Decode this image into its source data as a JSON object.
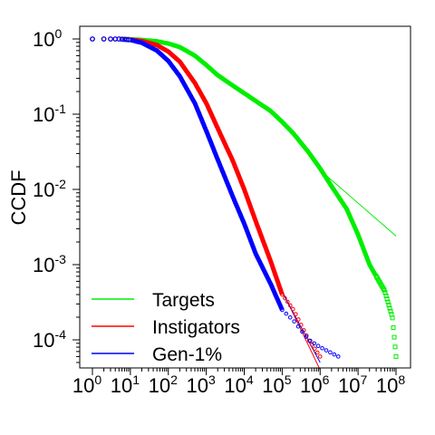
{
  "chart_data": {
    "type": "line",
    "title": "",
    "xlabel": "",
    "ylabel": "CCDF",
    "xscale": "log",
    "yscale": "log",
    "xlim": [
      1,
      100000000
    ],
    "ylim": [
      4e-05,
      1
    ],
    "grid": false,
    "legend_placement": "bottom-left",
    "x_ticks": [
      {
        "base": "10",
        "exp": "0",
        "value": 1
      },
      {
        "base": "10",
        "exp": "1",
        "value": 10
      },
      {
        "base": "10",
        "exp": "2",
        "value": 100
      },
      {
        "base": "10",
        "exp": "3",
        "value": 1000
      },
      {
        "base": "10",
        "exp": "4",
        "value": 10000
      },
      {
        "base": "10",
        "exp": "5",
        "value": 100000
      },
      {
        "base": "10",
        "exp": "6",
        "value": 1000000
      },
      {
        "base": "10",
        "exp": "7",
        "value": 10000000
      },
      {
        "base": "10",
        "exp": "8",
        "value": 100000000
      }
    ],
    "y_ticks": [
      {
        "base": "10",
        "exp": "0",
        "value": 1
      },
      {
        "base": "10",
        "exp": "-1",
        "value": 0.1
      },
      {
        "base": "10",
        "exp": "-2",
        "value": 0.01
      },
      {
        "base": "10",
        "exp": "-3",
        "value": 0.001
      },
      {
        "base": "10",
        "exp": "-4",
        "value": 0.0001
      }
    ],
    "series": [
      {
        "name": "Targets",
        "color": "#00ee00",
        "x": [
          1,
          2,
          3,
          5,
          10,
          20,
          50,
          100,
          200,
          500,
          1000,
          2000,
          5000,
          10000,
          20000,
          50000,
          100000,
          200000,
          500000,
          1000000,
          2000000,
          5000000,
          10000000,
          20000000,
          50000000,
          80000000,
          100000000
        ],
        "y": [
          1,
          1,
          1,
          1,
          0.99,
          0.97,
          0.93,
          0.87,
          0.78,
          0.6,
          0.45,
          0.33,
          0.24,
          0.19,
          0.15,
          0.11,
          0.079,
          0.055,
          0.031,
          0.019,
          0.011,
          0.0055,
          0.0025,
          0.001,
          0.00045,
          0.0002,
          6e-05
        ]
      },
      {
        "name": "Instigators",
        "color": "#ff0000",
        "x": [
          1,
          2,
          3,
          5,
          10,
          20,
          50,
          100,
          200,
          500,
          1000,
          2000,
          5000,
          10000,
          20000,
          50000,
          100000,
          200000,
          500000,
          1000000
        ],
        "y": [
          1,
          1,
          1,
          1,
          0.98,
          0.94,
          0.83,
          0.68,
          0.5,
          0.26,
          0.14,
          0.065,
          0.024,
          0.01,
          0.0038,
          0.0011,
          0.0004,
          0.00025,
          0.0001,
          6e-05
        ]
      },
      {
        "name": "Gen-1%",
        "color": "#0000ff",
        "x": [
          1,
          2,
          3,
          5,
          10,
          20,
          50,
          100,
          200,
          500,
          1000,
          2000,
          5000,
          10000,
          20000,
          50000,
          100000,
          200000,
          500000,
          1000000,
          3000000
        ],
        "y": [
          1,
          1,
          1,
          1,
          0.97,
          0.89,
          0.7,
          0.51,
          0.32,
          0.14,
          0.06,
          0.025,
          0.008,
          0.0035,
          0.0014,
          0.00055,
          0.00025,
          0.00018,
          0.0001,
          8e-05,
          6e-05
        ]
      }
    ],
    "fit_lines": [
      {
        "series": "Targets",
        "color": "#00ee00",
        "x": [
          1000000,
          100000000
        ],
        "y": [
          0.018,
          0.0024
        ]
      },
      {
        "series": "Instigators",
        "color": "#ff0000",
        "x": [
          100000,
          1000000
        ],
        "y": [
          0.00045,
          4e-05
        ]
      },
      {
        "series": "Gen-1%",
        "color": "#0000ff",
        "x": [
          100000,
          1000000
        ],
        "y": [
          0.00043,
          5e-05
        ]
      }
    ]
  }
}
